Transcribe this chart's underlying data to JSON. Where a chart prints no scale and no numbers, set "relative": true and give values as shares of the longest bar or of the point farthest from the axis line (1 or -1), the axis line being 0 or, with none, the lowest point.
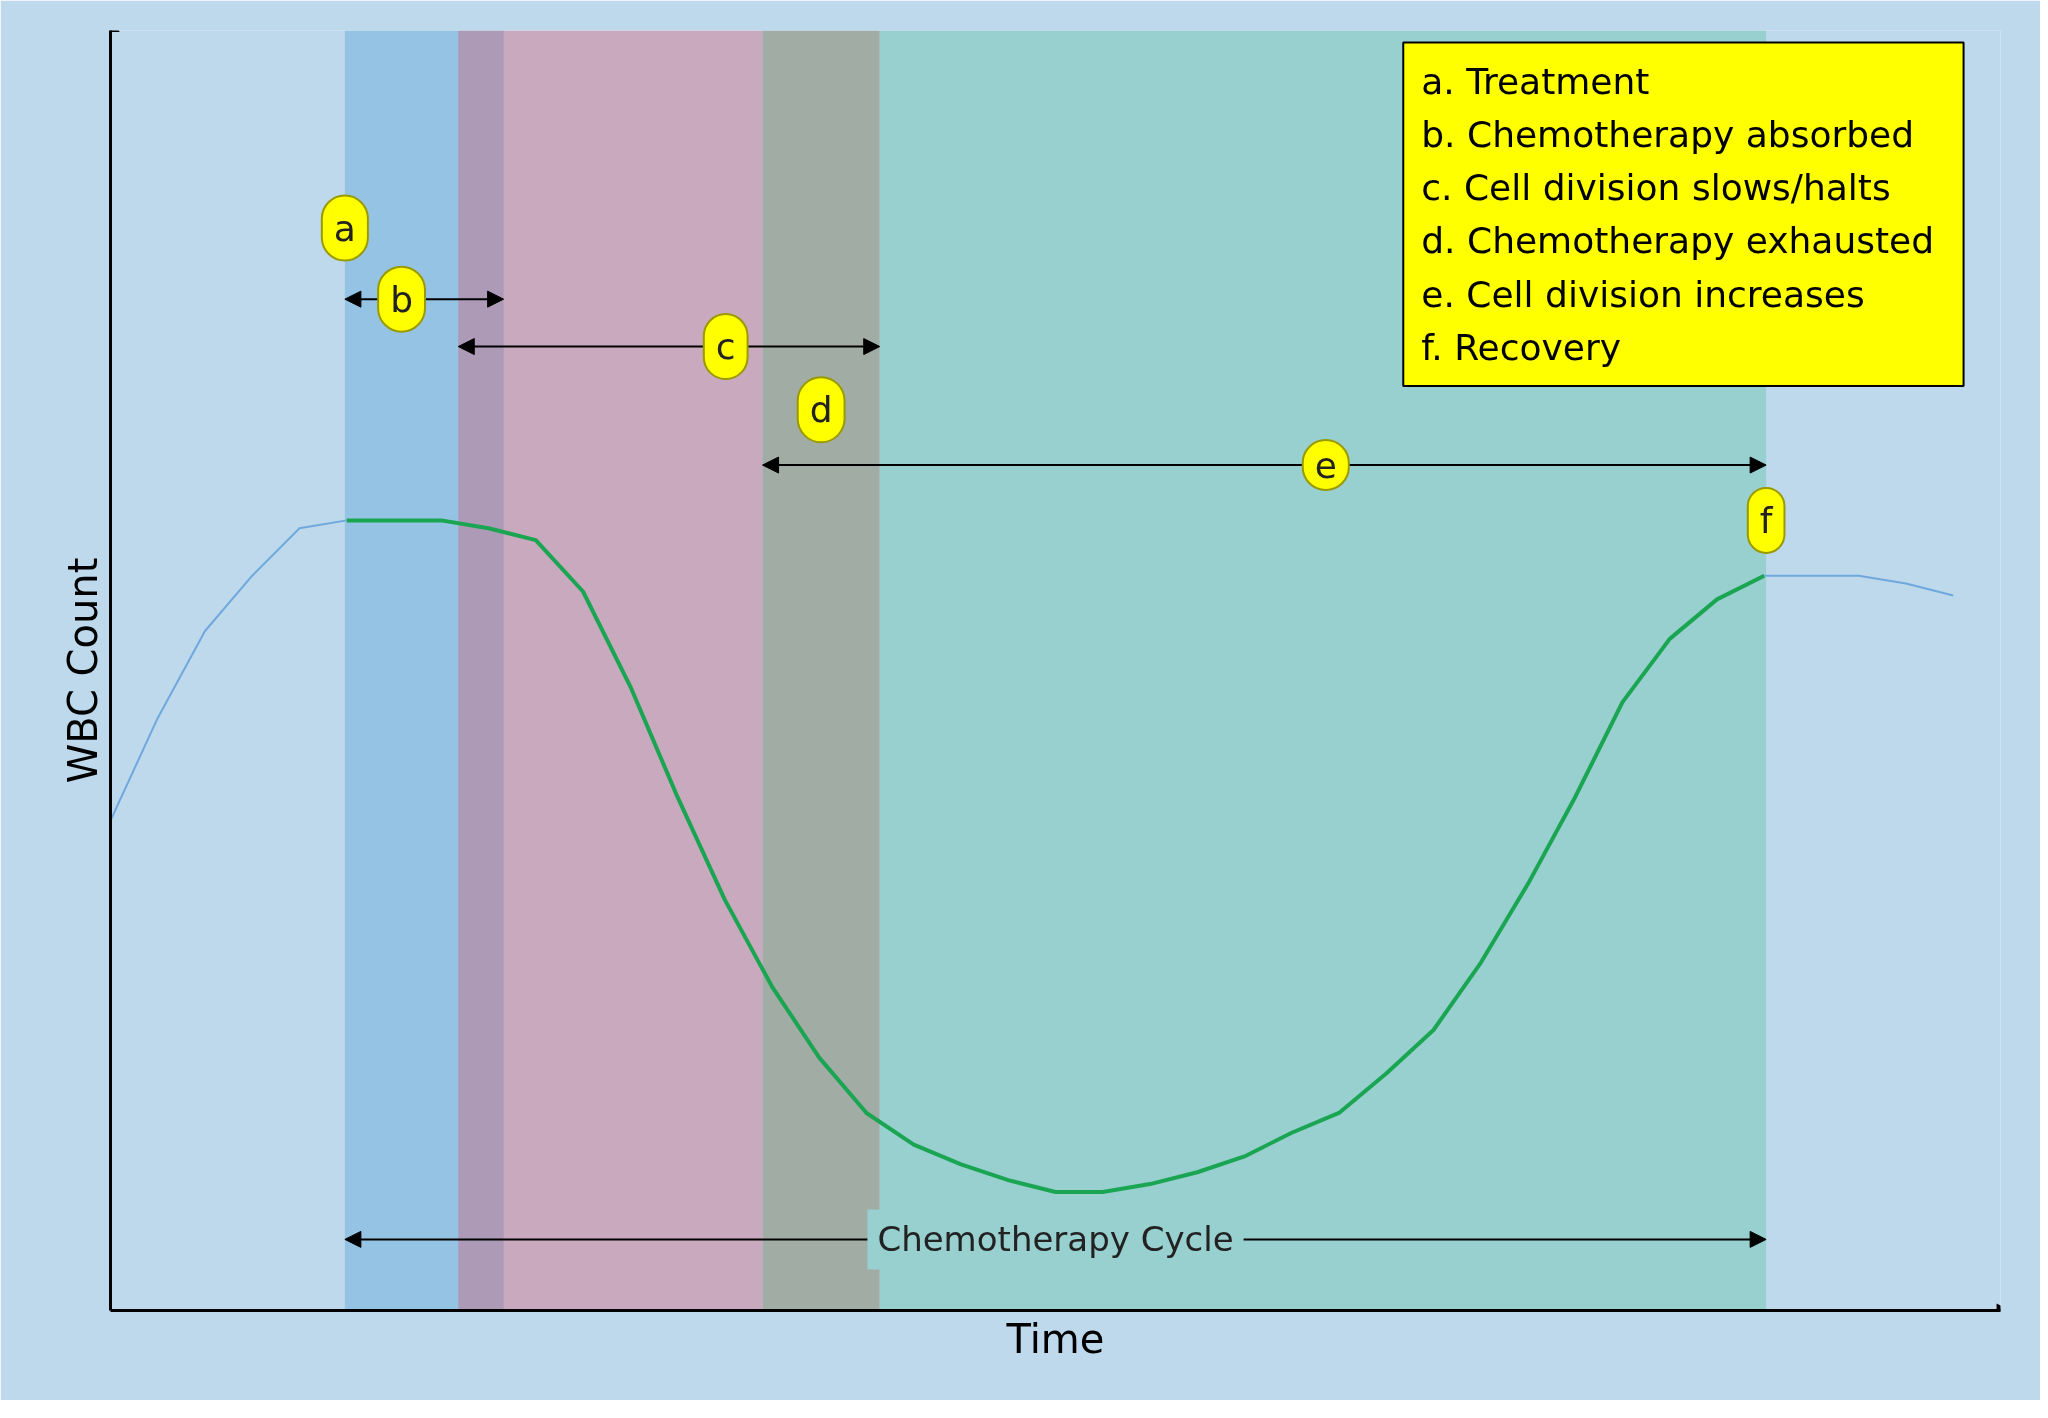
{
  "chart_data": {
    "type": "line",
    "relative": true,
    "xlabel": "Time",
    "ylabel": "WBC Count",
    "categories": [
      null,
      null,
      null,
      null,
      null,
      null,
      null,
      null,
      null,
      null,
      null,
      null,
      null,
      null,
      null,
      null,
      null,
      null,
      null,
      null,
      null,
      null,
      null,
      null,
      null,
      null,
      null,
      null,
      null,
      null,
      null,
      null,
      null,
      null,
      null,
      null,
      null,
      null,
      null,
      null,
      null
    ],
    "series": [
      {
        "color": "#6fa8dc",
        "values": [
          0.62,
          0.75,
          0.86,
          0.93,
          0.99,
          1.0,
          null,
          null,
          null,
          null,
          null,
          null,
          null,
          null,
          null,
          null,
          null,
          null,
          null,
          null,
          null,
          null,
          null,
          null,
          null,
          null,
          null,
          null,
          null,
          null,
          null,
          null,
          null,
          null,
          null,
          null,
          null,
          null,
          null,
          null,
          null
        ]
      },
      {
        "color": "#1aa552",
        "values": [
          null,
          null,
          null,
          null,
          null,
          1.0,
          1.0,
          1.0,
          0.99,
          0.975,
          0.91,
          0.79,
          0.65,
          0.52,
          0.41,
          0.32,
          0.25,
          0.21,
          0.185,
          0.165,
          0.15,
          0.15,
          0.16,
          0.175,
          0.195,
          0.225,
          0.25,
          0.3,
          0.355,
          0.44,
          0.54,
          0.65,
          0.77,
          0.85,
          0.9,
          0.93,
          null,
          null,
          null,
          null,
          null
        ]
      },
      {
        "color": "#6fa8dc",
        "values": [
          null,
          null,
          null,
          null,
          null,
          null,
          null,
          null,
          null,
          null,
          null,
          null,
          null,
          null,
          null,
          null,
          null,
          null,
          null,
          null,
          null,
          null,
          null,
          null,
          null,
          null,
          null,
          null,
          null,
          null,
          null,
          null,
          null,
          null,
          null,
          0.93,
          0.93,
          0.93,
          0.92,
          0.905,
          null
        ]
      }
    ],
    "annotations": [
      "a.  Treatment",
      "b.  Chemotherapy absorbed",
      "c.  Cell division slows/halts",
      "d.  Chemotherapy exhausted",
      "e.  Cell division increases",
      "f.  Recovery",
      "a",
      "b",
      "c",
      "d",
      "e",
      "f",
      "Chemotherapy Cycle"
    ]
  }
}
